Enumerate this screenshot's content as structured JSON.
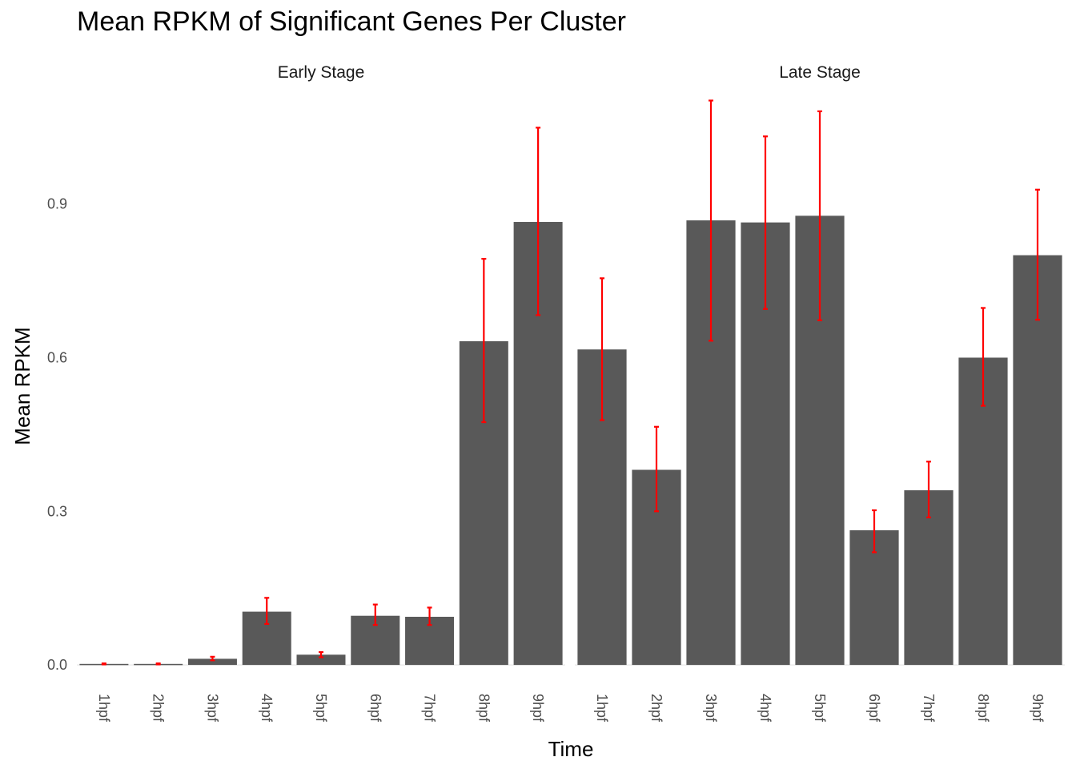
{
  "title": "Mean RPKM of Significant Genes Per Cluster",
  "chart_data": {
    "type": "bar",
    "title": "Mean RPKM of Significant Genes Per Cluster",
    "xlabel": "Time",
    "ylabel": "Mean RPKM",
    "ylim": [
      -0.003,
      1.12
    ],
    "yticks": [
      0.0,
      0.3,
      0.6,
      0.9
    ],
    "ytick_labels": [
      "0.0",
      "0.3",
      "0.6",
      "0.9"
    ],
    "grid": false,
    "bar_color": "#595959",
    "error_color": "#ff0000",
    "categories": [
      "1hpf",
      "2hpf",
      "3hpf",
      "4hpf",
      "5hpf",
      "6hpf",
      "7hpf",
      "8hpf",
      "9hpf"
    ],
    "panels": [
      {
        "name": "Early Stage",
        "values": [
          0.002,
          0.002,
          0.012,
          0.104,
          0.02,
          0.096,
          0.094,
          0.632,
          0.865
        ],
        "error_low": [
          0.001,
          0.001,
          0.009,
          0.08,
          0.015,
          0.078,
          0.078,
          0.474,
          0.683
        ],
        "error_high": [
          0.003,
          0.003,
          0.016,
          0.131,
          0.025,
          0.118,
          0.112,
          0.793,
          1.049
        ]
      },
      {
        "name": "Late Stage",
        "values": [
          0.616,
          0.381,
          0.868,
          0.864,
          0.877,
          0.263,
          0.341,
          0.6,
          0.8
        ],
        "error_low": [
          0.478,
          0.3,
          0.633,
          0.695,
          0.673,
          0.22,
          0.288,
          0.506,
          0.674
        ],
        "error_high": [
          0.755,
          0.465,
          1.102,
          1.032,
          1.081,
          0.302,
          0.397,
          0.697,
          0.928
        ]
      }
    ]
  }
}
